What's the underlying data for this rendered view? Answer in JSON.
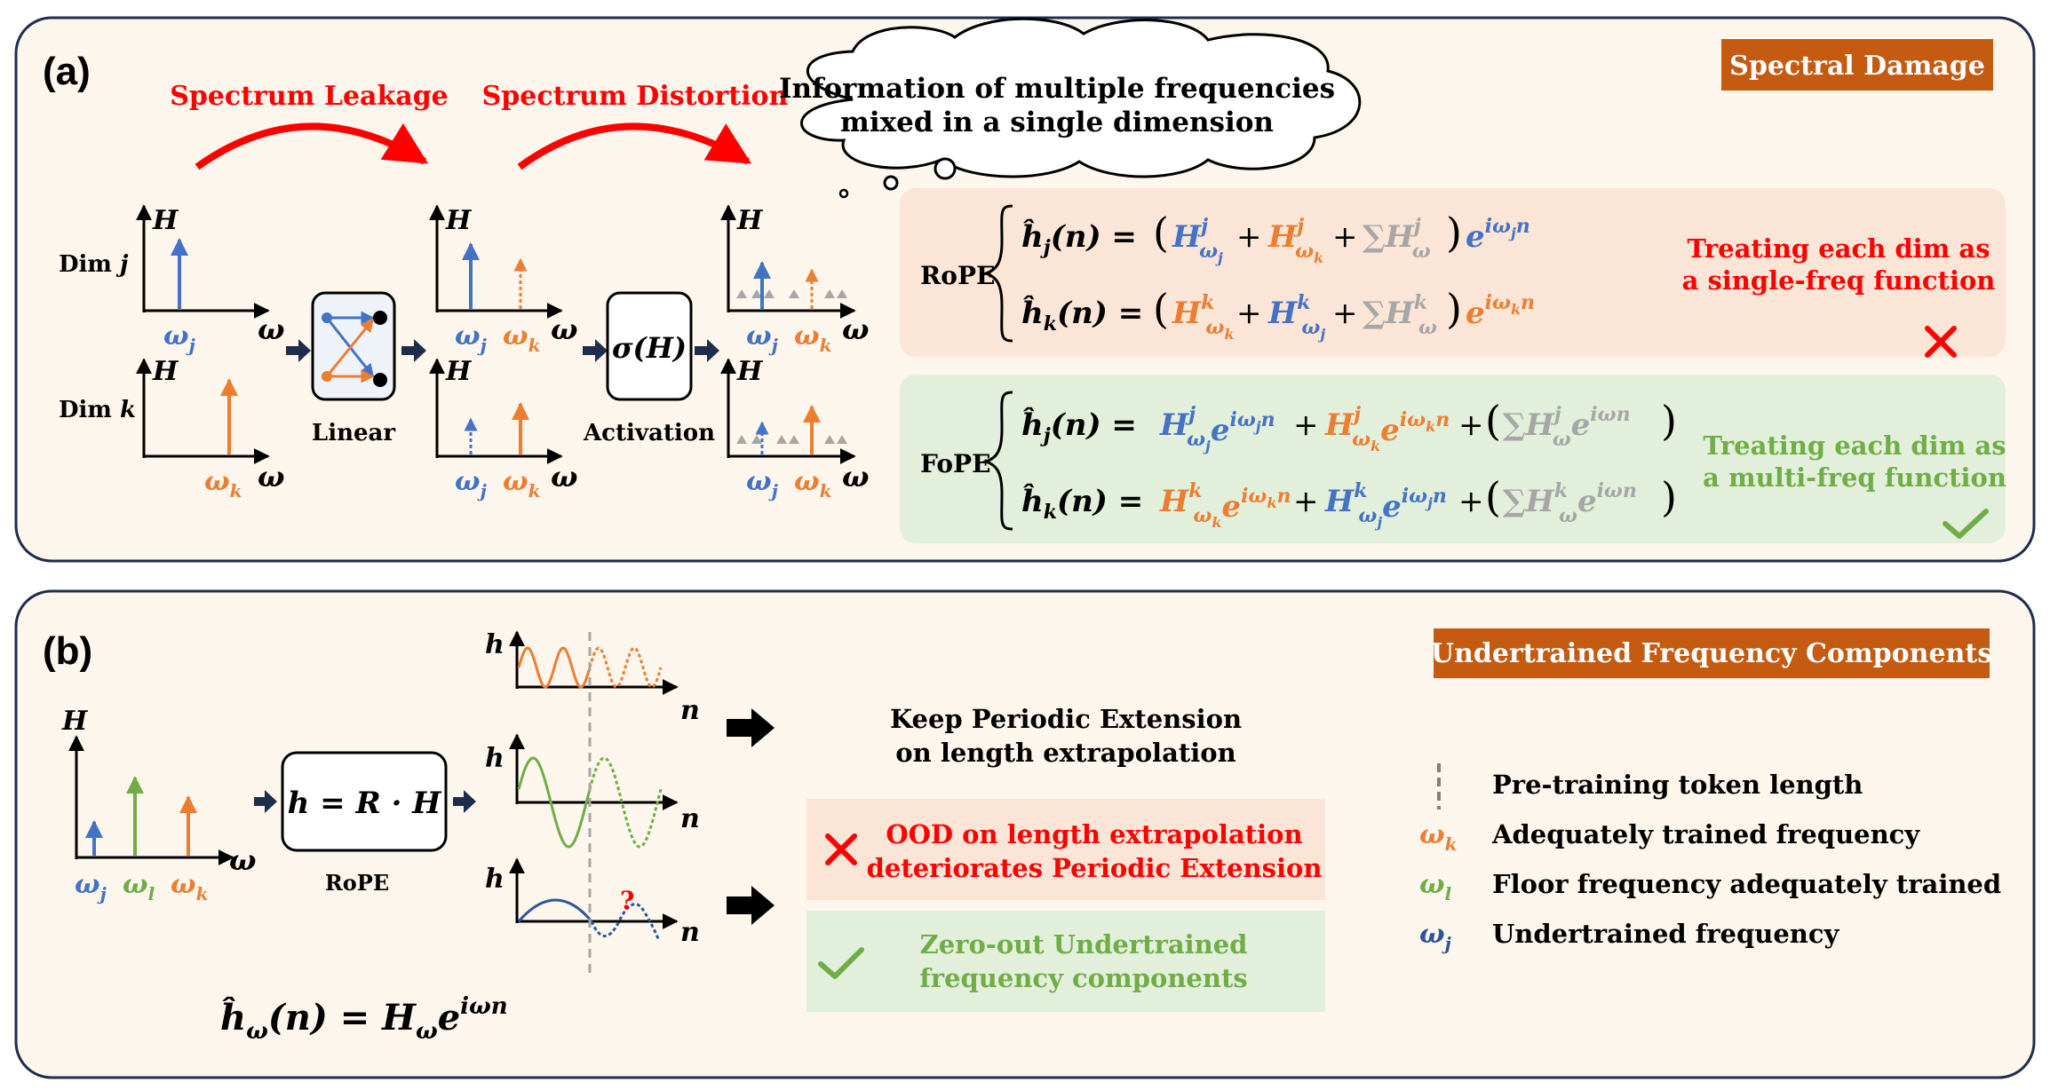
{
  "panel_a": {
    "label": "(a)",
    "banner": "Spectral Damage",
    "leakage": "Spectrum Leakage",
    "distortion": "Spectrum Distortion",
    "cloud_line1": "Information of multiple frequencies",
    "cloud_line2": "mixed in a single dimension",
    "dim_j": "Dim",
    "dim_j_var": "j",
    "dim_k": "Dim",
    "dim_k_var": "k",
    "axis_y": "H",
    "axis_x": "ω",
    "omega": "ω",
    "sub_j": "j",
    "sub_k": "k",
    "linear_label": "Linear",
    "activation_label": "Activation",
    "sigma": "σ(H)",
    "rope_label": "RoPE",
    "fope_label": "FoPE",
    "rope_note_line1": "Treating each dim as",
    "rope_note_line2": "a single-freq function",
    "fope_note_line1": "Treating each dim as",
    "fope_note_line2": "a multi-freq function",
    "hj": "ĥ",
    "hj_sub": "j",
    "hk_sub": "k",
    "n_arg": "(n) =",
    "sum": "∑",
    "e": "e",
    "exp_j": "iω",
    "exp_k": "iω",
    "exp_w": "iωn",
    "n": "n",
    "plus": "+",
    "lparen": "(",
    "rparen": ")"
  },
  "panel_b": {
    "label": "(b)",
    "banner": "Undertrained  Frequency Components",
    "axis_y": "H",
    "axis_x": "ω",
    "omega": "ω",
    "sub_j": "j",
    "sub_l": "l",
    "sub_k": "k",
    "rope_box": "h = R · H",
    "rope_label": "RoPE",
    "wave_y": "h",
    "wave_x": "n",
    "qmark": "?",
    "keep_line1": "Keep Periodic Extension",
    "keep_line2": "on length extrapolation",
    "ood_line1": "OOD on length extrapolation",
    "ood_line2": "deteriorates  Periodic Extension",
    "zero_line1": "Zero-out Undertrained",
    "zero_line2": "frequency components",
    "formula_h": "ĥ",
    "formula_sub": "ω",
    "formula_mid": "(n) = H",
    "formula_e": "e",
    "formula_exp": "iωn",
    "legend": [
      {
        "symbol": "",
        "text": "Pre-training  token length"
      },
      {
        "symbol": "ω",
        "sub": "k",
        "text": "Adequately trained frequency"
      },
      {
        "symbol": "ω",
        "sub": "l",
        "text": "Floor frequency adequately  trained"
      },
      {
        "symbol": "ω",
        "sub": "j",
        "text": "Undertrained   frequency"
      }
    ]
  },
  "colors": {
    "blue": "#4472C4",
    "orange": "#ED7D31",
    "green": "#70AD47",
    "gray": "#A6A6A6",
    "red": "#FF0000",
    "banner": "#C55A11",
    "panel_bg": "#FDF6EC",
    "rope_box_bg": "#FBE5D6",
    "fope_box_bg": "#E2EFDA"
  }
}
